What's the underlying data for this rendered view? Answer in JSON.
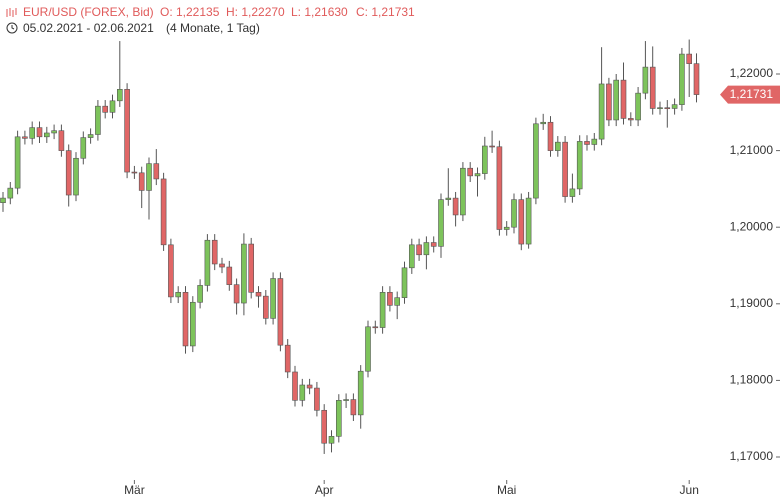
{
  "chart_data": {
    "type": "candlestick",
    "title": "EUR/USD (FOREX, Bid)",
    "ohlc_labels": [
      "O: 1,22135",
      "H: 1,22270",
      "L: 1,21630",
      "C: 1,21731"
    ],
    "subtitle": "05.02.2021 - 02.06.2021",
    "period": "(4 Monate, 1 Tag)",
    "categories": [
      null,
      null,
      null,
      null,
      null,
      null,
      null,
      null,
      null,
      null,
      null,
      null,
      null,
      null,
      null,
      null,
      null,
      null,
      "Mär",
      null,
      null,
      null,
      null,
      null,
      null,
      null,
      null,
      null,
      null,
      null,
      null,
      null,
      null,
      null,
      null,
      null,
      null,
      null,
      null,
      null,
      null,
      null,
      null,
      null,
      "Apr",
      null,
      null,
      null,
      null,
      null,
      null,
      null,
      null,
      null,
      null,
      null,
      null,
      null,
      null,
      null,
      null,
      null,
      null,
      null,
      null,
      null,
      null,
      null,
      null,
      "Mai",
      null,
      null,
      null,
      null,
      null,
      null,
      null,
      null,
      null,
      null,
      null,
      null,
      null,
      null,
      null,
      null,
      null,
      null,
      null,
      null,
      null,
      null,
      null,
      null,
      "Jun",
      null
    ],
    "open": [
      1.2032,
      1.2038,
      1.2051,
      1.2118,
      1.2116,
      1.213,
      1.2118,
      1.2123,
      1.2126,
      1.21,
      1.2042,
      1.209,
      1.2117,
      1.2121,
      1.2158,
      1.215,
      1.2165,
      1.218,
      1.2072,
      1.2071,
      1.2048,
      1.2083,
      1.2063,
      1.1977,
      1.1909,
      1.1915,
      1.1845,
      1.1902,
      1.1924,
      1.1983,
      1.1952,
      1.1948,
      1.1925,
      1.1901,
      1.1978,
      1.1915,
      1.191,
      1.1881,
      1.1933,
      1.1846,
      1.1811,
      1.1774,
      1.1794,
      1.179,
      1.1761,
      1.1718,
      1.1727,
      1.1774,
      1.1775,
      1.1755,
      1.1812,
      1.187,
      1.1869,
      1.1915,
      1.1898,
      1.1908,
      1.1947,
      1.1977,
      1.1964,
      1.198,
      1.1975,
      1.2036,
      1.2038,
      1.2016,
      1.2077,
      1.2067,
      1.207,
      1.2106,
      1.2105,
      1.1997,
      1.2,
      1.2036,
      1.1978,
      1.2038,
      1.2135,
      1.2137,
      1.21,
      1.2111,
      1.204,
      1.205,
      1.2112,
      1.2108,
      1.2115,
      1.2187,
      1.214,
      1.2192,
      1.2142,
      1.214,
      1.2175,
      1.2209,
      1.2155,
      1.2156,
      1.2155,
      1.216,
      1.2226,
      1.22135
    ],
    "high": [
      1.2046,
      1.2059,
      1.2126,
      1.2126,
      1.2138,
      1.2138,
      1.2131,
      1.2134,
      1.2134,
      1.2108,
      1.2098,
      1.2125,
      1.2129,
      1.2166,
      1.2166,
      1.2173,
      1.2243,
      1.2188,
      1.208,
      1.2079,
      1.2091,
      1.2102,
      1.2071,
      1.1985,
      1.1923,
      1.1923,
      1.191,
      1.1932,
      1.1991,
      1.1991,
      1.196,
      1.1956,
      1.1933,
      1.1992,
      1.1986,
      1.1923,
      1.1918,
      1.1941,
      1.1941,
      1.1854,
      1.1819,
      1.1802,
      1.1802,
      1.1798,
      1.1769,
      1.1735,
      1.1782,
      1.1783,
      1.1783,
      1.182,
      1.1878,
      1.1878,
      1.1923,
      1.1923,
      1.1916,
      1.1955,
      1.1985,
      1.1985,
      1.1988,
      1.1988,
      1.2044,
      1.2077,
      1.2046,
      1.2085,
      1.2085,
      1.2078,
      1.2118,
      1.2126,
      1.2113,
      1.2008,
      1.2044,
      1.2044,
      1.2046,
      1.2143,
      1.2148,
      1.2145,
      1.2119,
      1.2119,
      1.207,
      1.212,
      1.212,
      1.2123,
      1.2235,
      1.2195,
      1.22,
      1.2215,
      1.215,
      1.2183,
      1.2243,
      1.2236,
      1.2164,
      1.2166,
      1.2168,
      1.2234,
      1.2245,
      1.2227
    ],
    "low": [
      1.202,
      1.203,
      1.2043,
      1.2108,
      1.2108,
      1.211,
      1.211,
      1.2115,
      1.2092,
      1.2027,
      1.2034,
      1.2082,
      1.2109,
      1.2113,
      1.2142,
      1.2142,
      1.2157,
      1.2064,
      1.2063,
      1.2025,
      1.201,
      1.2055,
      1.1969,
      1.1901,
      1.1901,
      1.1835,
      1.1837,
      1.1894,
      1.1916,
      1.1944,
      1.194,
      1.1917,
      1.1886,
      1.1885,
      1.1907,
      1.1895,
      1.1873,
      1.1873,
      1.1838,
      1.1803,
      1.1766,
      1.1766,
      1.1782,
      1.1753,
      1.1704,
      1.1706,
      1.1719,
      1.1764,
      1.1747,
      1.1737,
      1.1804,
      1.1861,
      1.1861,
      1.189,
      1.188,
      1.19,
      1.1939,
      1.1956,
      1.1945,
      1.1967,
      1.196,
      1.2028,
      1.2001,
      1.2008,
      1.2059,
      1.204,
      1.2062,
      1.2097,
      1.1989,
      1.1989,
      1.1992,
      1.197,
      1.1972,
      1.203,
      1.2127,
      1.2092,
      1.2092,
      1.2032,
      1.2032,
      1.2042,
      1.21,
      1.21,
      1.2107,
      1.2132,
      1.2132,
      1.2134,
      1.2132,
      1.2132,
      1.2167,
      1.2147,
      1.2147,
      1.213,
      1.2147,
      1.2152,
      1.217,
      1.2163
    ],
    "close": [
      1.2038,
      1.2051,
      1.2118,
      1.2116,
      1.213,
      1.2118,
      1.2123,
      1.2126,
      1.21,
      1.2042,
      1.209,
      1.2117,
      1.2121,
      1.2158,
      1.215,
      1.2165,
      1.218,
      1.2072,
      1.2071,
      1.2048,
      1.2083,
      1.2063,
      1.1977,
      1.1909,
      1.1915,
      1.1845,
      1.1902,
      1.1924,
      1.1983,
      1.1952,
      1.1948,
      1.1925,
      1.1901,
      1.1978,
      1.1915,
      1.191,
      1.1881,
      1.1933,
      1.1846,
      1.1811,
      1.1774,
      1.1794,
      1.179,
      1.1761,
      1.1718,
      1.1727,
      1.1774,
      1.1775,
      1.1755,
      1.1812,
      1.187,
      1.1869,
      1.1915,
      1.1898,
      1.1908,
      1.1947,
      1.1977,
      1.1964,
      1.198,
      1.1975,
      1.2036,
      1.2038,
      1.2016,
      1.2077,
      1.2067,
      1.207,
      1.2106,
      1.2105,
      1.1997,
      1.2,
      1.2036,
      1.1978,
      1.2038,
      1.2135,
      1.2137,
      1.21,
      1.2111,
      1.204,
      1.205,
      1.2112,
      1.2108,
      1.2115,
      1.2187,
      1.214,
      1.2192,
      1.2142,
      1.214,
      1.2175,
      1.2209,
      1.2155,
      1.2156,
      1.2155,
      1.216,
      1.2226,
      1.22135,
      1.21731
    ],
    "up_color": "#7dc35b",
    "down_color": "#e06666",
    "last_price": {
      "value": 1.21731,
      "label": "1,21731"
    },
    "ylim": [
      1.16726,
      1.22966
    ],
    "yticks": [
      {
        "value": 1.17,
        "label": "1,17000"
      },
      {
        "value": 1.18,
        "label": "1,18000"
      },
      {
        "value": 1.19,
        "label": "1,19000"
      },
      {
        "value": 1.2,
        "label": "1,20000"
      },
      {
        "value": 1.21,
        "label": "1,21000"
      },
      {
        "value": 1.22,
        "label": "1,22000"
      }
    ],
    "grid": false
  }
}
